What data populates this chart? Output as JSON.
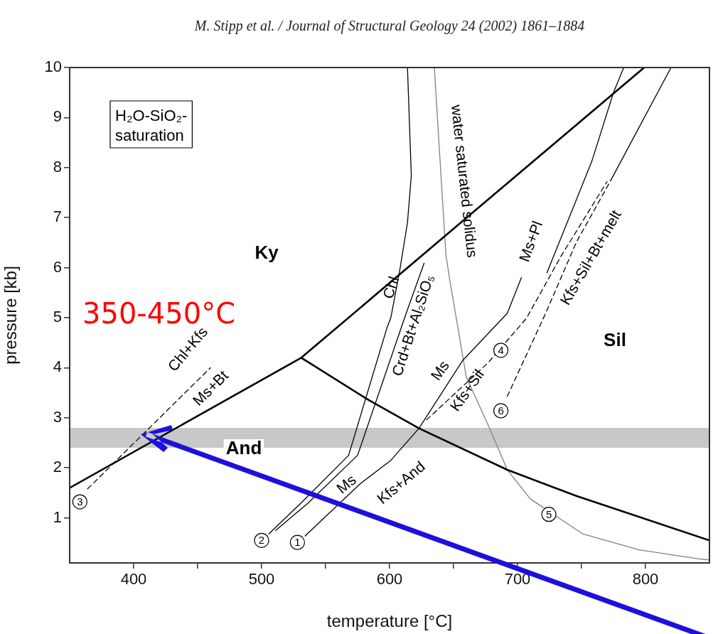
{
  "chart_data": {
    "type": "line",
    "title": "M. Stipp et al. / Journal of Structural Geology 24 (2002) 1861–1884",
    "xlabel": "temperature [°C]",
    "ylabel": "pressure [kb]",
    "xlim": [
      350,
      850
    ],
    "ylim": [
      0.1,
      10
    ],
    "xticks": [
      400,
      {
        "value": 450,
        "label": null
      },
      500,
      {
        "value": 550,
        "label": null
      },
      600,
      {
        "value": 650,
        "label": null
      },
      700,
      {
        "value": 750,
        "label": null
      },
      800
    ],
    "yticks": [
      1,
      2,
      3,
      4,
      5,
      6,
      7,
      8,
      9,
      10
    ],
    "grid": false,
    "legend": false,
    "marker": "none",
    "series": [
      {
        "type": "line",
        "color": "#000000",
        "line_style": "solid",
        "x": [
          350,
          531,
          664,
          799
        ],
        "values": [
          1.6,
          4.2,
          7.08,
          10
        ]
      },
      {
        "type": "line",
        "color": "#000000",
        "line_style": "solid",
        "x": [
          531,
          584,
          623,
          692,
          746,
          850
        ],
        "values": [
          4.2,
          3.35,
          2.79,
          1.96,
          1.44,
          0.55
        ]
      },
      {
        "type": "line",
        "color": "#000000",
        "line_style": "solid",
        "x": [
          505.6,
          530.5,
          568,
          598,
          601,
          608,
          614,
          617,
          614
        ],
        "values": [
          0.68,
          1.29,
          2.25,
          4.8,
          5.0,
          5.95,
          6.9,
          7.84,
          10
        ]
      },
      {
        "type": "line",
        "color": "#000000",
        "line_style": "solid",
        "x": [
          511,
          536,
          575,
          613,
          627
        ],
        "values": [
          0.75,
          1.29,
          2.25,
          5.09,
          6.09
        ]
      },
      {
        "type": "line",
        "color": "#000000",
        "line_style": "solid",
        "x": [
          534,
          577,
          601,
          623,
          657,
          692,
          703
        ],
        "values": [
          0.64,
          1.68,
          2.15,
          2.79,
          4.14,
          5.09,
          5.8
        ]
      },
      {
        "type": "line",
        "color": "#000000",
        "line_style": "solid",
        "x": [
          723,
          758,
          775,
          783
        ],
        "values": [
          5.9,
          8.12,
          9.5,
          10
        ]
      },
      {
        "type": "line",
        "color": "#000000",
        "line_style": "dashed",
        "x": [
          629,
          677,
          707,
          734,
          770
        ],
        "values": [
          2.96,
          4.1,
          4.99,
          6.23,
          7.72
        ]
      },
      {
        "type": "line",
        "color": "#000000",
        "line_style": "dashed",
        "x": [
          692,
          722,
          746,
          773
        ],
        "values": [
          3.43,
          5.09,
          6.51,
          7.75
        ]
      },
      {
        "type": "line",
        "color": "#000000",
        "line_style": "solid",
        "x": [
          773,
          820
        ],
        "values": [
          7.75,
          10
        ]
      },
      {
        "type": "line",
        "color": "#000000",
        "line_style": "dashed",
        "x": [
          364,
          460
        ],
        "values": [
          1.58,
          4.0
        ]
      },
      {
        "type": "line",
        "color": "#808080",
        "line_style": "solid",
        "x": [
          635,
          644,
          647,
          660,
          677,
          692,
          710,
          751,
          795,
          842,
          850
        ],
        "values": [
          10,
          6.27,
          5.76,
          3.81,
          2.86,
          1.96,
          1.38,
          0.68,
          0.36,
          0.18,
          0.16
        ]
      }
    ],
    "bands": [
      {
        "axis": "y",
        "from": 2.4,
        "to": 2.8,
        "color": "#c8c8c8"
      }
    ],
    "annotations": [
      "H₂O-SiO₂-saturation",
      "350-450°C",
      "Ky",
      "And",
      "Sil",
      "Chl+Kfs",
      "Ms+Bt",
      "Chl",
      "Crd+Bt+Al₂SiO₅",
      "water saturated solidus",
      "Ms+Pl",
      "Kfs+Sil+Bt+melt",
      "Ms",
      "Kfs+Sil",
      "Ms",
      "Kfs+And",
      {
        "text": "1",
        "x": 528,
        "y": 0.51
      },
      {
        "text": "2",
        "x": 500,
        "y": 0.55
      },
      {
        "text": "3",
        "x": 358,
        "y": 1.32
      },
      {
        "text": "4",
        "x": 687,
        "y": 4.35
      },
      {
        "text": "5",
        "x": 724.5,
        "y": 1.07
      },
      {
        "text": "6",
        "x": 687,
        "y": 3.14
      }
    ]
  }
}
